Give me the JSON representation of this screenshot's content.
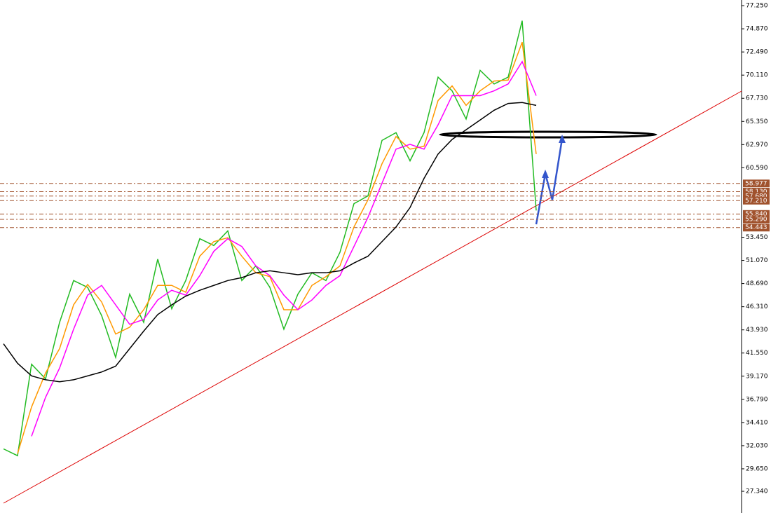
{
  "chart_data": {
    "type": "line",
    "ylim": [
      25.11,
      77.83
    ],
    "yticks": [
      {
        "value": 77.25,
        "label": "77.250"
      },
      {
        "value": 74.87,
        "label": "74.870"
      },
      {
        "value": 72.49,
        "label": "72.490"
      },
      {
        "value": 70.11,
        "label": "70.110"
      },
      {
        "value": 67.73,
        "label": "67.730"
      },
      {
        "value": 65.35,
        "label": "65.350"
      },
      {
        "value": 62.97,
        "label": "62.970"
      },
      {
        "value": 60.59,
        "label": "60.590"
      },
      {
        "value": 53.45,
        "label": "53.450"
      },
      {
        "value": 51.07,
        "label": "51.070"
      },
      {
        "value": 48.69,
        "label": "48.690"
      },
      {
        "value": 46.31,
        "label": "46.310"
      },
      {
        "value": 43.93,
        "label": "43.930"
      },
      {
        "value": 41.55,
        "label": "41.550"
      },
      {
        "value": 39.17,
        "label": "39.170"
      },
      {
        "value": 36.79,
        "label": "36.790"
      },
      {
        "value": 34.41,
        "label": "34.410"
      },
      {
        "value": 32.03,
        "label": "32.030"
      },
      {
        "value": 29.65,
        "label": "29.650"
      },
      {
        "value": 27.34,
        "label": "27.340"
      }
    ],
    "levels": [
      {
        "value": 58.977,
        "label": "58.977"
      },
      {
        "value": 58.13,
        "label": "58.130"
      },
      {
        "value": 57.68,
        "label": "57.680"
      },
      {
        "value": 57.21,
        "label": "57.210"
      },
      {
        "value": 55.84,
        "label": "55.840"
      },
      {
        "value": 55.29,
        "label": "55.290"
      },
      {
        "value": 54.443,
        "label": "54.443"
      }
    ],
    "level_color": "#a0522d",
    "series": [
      {
        "color": "#22bb22",
        "values": [
          31.7,
          31.0,
          40.4,
          38.9,
          44.7,
          49.0,
          48.3,
          45.4,
          41.1,
          47.6,
          44.7,
          51.2,
          46.1,
          49.0,
          53.3,
          52.6,
          54.1,
          49.0,
          50.5,
          48.3,
          44.0,
          47.6,
          49.8,
          49.0,
          51.9,
          56.9,
          57.7,
          63.4,
          64.2,
          61.3,
          64.2,
          69.9,
          68.5,
          65.6,
          70.6,
          69.2,
          69.9,
          75.7,
          56.2
        ]
      },
      {
        "color": "#ff9900",
        "values": [
          null,
          31.2,
          36,
          39.5,
          42,
          46.5,
          48.6,
          46.8,
          43.5,
          44.2,
          46,
          48.5,
          48.5,
          47.8,
          51.5,
          53,
          53.4,
          51.5,
          49.8,
          49.4,
          46,
          46,
          48.5,
          49.4,
          50.5,
          54.5,
          57.3,
          61,
          63.8,
          62.5,
          62.8,
          67.5,
          69,
          67,
          68.5,
          69.5,
          69.6,
          73.5,
          62
        ]
      },
      {
        "color": "#ff00ff",
        "values": [
          null,
          null,
          33,
          37,
          40,
          44,
          47.5,
          48.5,
          46.5,
          44.5,
          45,
          47,
          48,
          47.5,
          49.5,
          52,
          53.3,
          52.5,
          50.5,
          49.5,
          47.5,
          46,
          47,
          48.5,
          49.5,
          52.5,
          55.5,
          59,
          62.5,
          63,
          62.5,
          65,
          68,
          68,
          68,
          68.5,
          69.2,
          71.5,
          68
        ]
      },
      {
        "color": "#000000",
        "values": [
          42.5,
          40.5,
          39.2,
          38.8,
          38.6,
          38.8,
          39.2,
          39.6,
          40.2,
          42,
          43.8,
          45.5,
          46.5,
          47.4,
          48,
          48.5,
          49,
          49.3,
          49.8,
          50,
          49.8,
          49.6,
          49.8,
          49.8,
          50,
          50.8,
          51.5,
          53,
          54.5,
          56.5,
          59.5,
          62,
          63.5,
          64.5,
          65.5,
          66.5,
          67.2,
          67.3,
          67
        ]
      }
    ]
  }
}
